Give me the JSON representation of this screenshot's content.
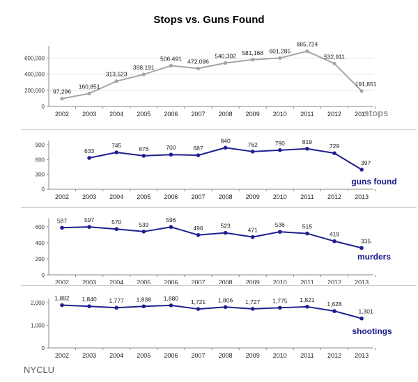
{
  "title": "Stops vs. Guns Found",
  "footer": "NYCLU",
  "chart_data": [
    {
      "type": "line",
      "series_label": "stops",
      "x": [
        "2002",
        "2003",
        "2004",
        "2005",
        "2006",
        "2007",
        "2008",
        "2009",
        "2010",
        "2011",
        "2012",
        "2013"
      ],
      "values": [
        97296,
        160851,
        313523,
        398191,
        506491,
        472096,
        540302,
        581168,
        601285,
        685724,
        532911,
        191851
      ],
      "value_labels": [
        "97,296",
        "160,851",
        "313,523",
        "398,191",
        "506,491",
        "472,096",
        "540,302",
        "581,168",
        "601,285",
        "685,724",
        "532,911",
        "191,851"
      ],
      "yticks": [
        0,
        200000,
        400000,
        600000
      ],
      "ytick_labels": [
        "0",
        "200,000",
        "400,000",
        "600,000"
      ],
      "ylim": [
        0,
        700000
      ],
      "color": "#a6a6a6",
      "label_color": "#9a9a9a"
    },
    {
      "type": "line",
      "series_label": "guns found",
      "x": [
        "2002",
        "2003",
        "2004",
        "2005",
        "2006",
        "2007",
        "2008",
        "2009",
        "2010",
        "2011",
        "2012",
        "2013"
      ],
      "values": [
        null,
        633,
        745,
        676,
        700,
        687,
        840,
        762,
        790,
        819,
        729,
        397
      ],
      "value_labels": [
        null,
        "633",
        "745",
        "676",
        "700",
        "687",
        "840",
        "762",
        "790",
        "819",
        "729",
        "397"
      ],
      "yticks": [
        0,
        300,
        600,
        900
      ],
      "ytick_labels": [
        "0",
        "300",
        "600",
        "900"
      ],
      "ylim": [
        0,
        900
      ],
      "color": "#1f1f8f",
      "label_color": "#1a1a8c"
    },
    {
      "type": "line",
      "series_label": "murders",
      "x": [
        "2002",
        "2003",
        "2004",
        "2005",
        "2006",
        "2007",
        "2008",
        "2009",
        "2010",
        "2011",
        "2012",
        "2013"
      ],
      "values": [
        587,
        597,
        570,
        539,
        596,
        496,
        523,
        471,
        536,
        515,
        419,
        335
      ],
      "value_labels": [
        "587",
        "597",
        "570",
        "539",
        "596",
        "496",
        "523",
        "471",
        "536",
        "515",
        "419",
        "335"
      ],
      "yticks": [
        0,
        200,
        400,
        600
      ],
      "ytick_labels": [
        "0",
        "200",
        "400",
        "600"
      ],
      "ylim": [
        0,
        650
      ],
      "color": "#1f1f8f",
      "label_color": "#1a1a8c"
    },
    {
      "type": "line",
      "series_label": "shootings",
      "x": [
        "2002",
        "2003",
        "2004",
        "2005",
        "2006",
        "2007",
        "2008",
        "2009",
        "2010",
        "2011",
        "2012",
        "2013"
      ],
      "values": [
        1892,
        1840,
        1777,
        1838,
        1880,
        1721,
        1806,
        1727,
        1775,
        1821,
        1628,
        1301
      ],
      "value_labels": [
        "1,892",
        "1,840",
        "1,777",
        "1,838",
        "1,880",
        "1,721",
        "1,806",
        "1,727",
        "1,775",
        "1,821",
        "1,628",
        "1,301"
      ],
      "yticks": [
        0,
        1000,
        2000
      ],
      "ytick_labels": [
        "0",
        "1,000",
        "2,000"
      ],
      "ylim": [
        0,
        2000
      ],
      "color": "#1f1f8f",
      "label_color": "#1a1a8c"
    }
  ]
}
